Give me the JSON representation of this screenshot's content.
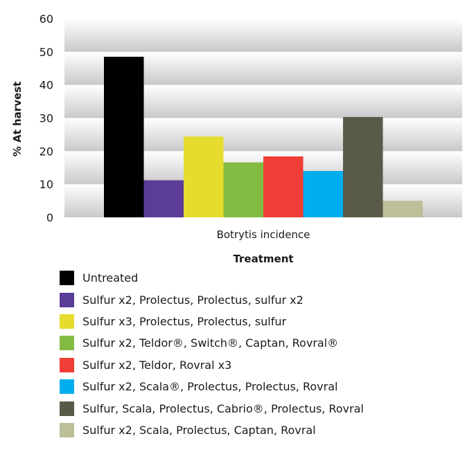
{
  "chart_data": {
    "type": "bar",
    "categories": [
      "Botrytis incidence"
    ],
    "xlabel": "Treatment",
    "ylabel": "% At harvest",
    "ylim": [
      0,
      60
    ],
    "yticks": [
      "0",
      "10",
      "20",
      "30",
      "40",
      "50",
      "60"
    ],
    "grid": true,
    "legend_position": "bottom",
    "series": [
      {
        "name": "Untreated",
        "values": [
          48.5
        ],
        "color": "#000000"
      },
      {
        "name": "Sulfur x2, Prolectus, Prolectus, sulfur x2",
        "values": [
          11.2
        ],
        "color": "#5b3c96"
      },
      {
        "name": "Sulfur x3, Prolectus, Prolectus, sulfur",
        "values": [
          24.4
        ],
        "color": "#e6dc2e"
      },
      {
        "name": "Sulfur x2, Teldor®, Switch®, Captan, Rovral®",
        "values": [
          16.6
        ],
        "color": "#83bb45"
      },
      {
        "name": "Sulfur x2, Teldor, Rovral x3",
        "values": [
          18.4
        ],
        "color": "#ee3e35"
      },
      {
        "name": "Sulfur x2, Scala®, Prolectus, Prolectus, Rovral",
        "values": [
          14.0
        ],
        "color": "#00aeef"
      },
      {
        "name": "Sulfur, Scala, Prolectus, Cabrio®, Prolectus, Rovral",
        "values": [
          30.3
        ],
        "color": "#5a5a48"
      },
      {
        "name": "Sulfur x2, Scala, Prolectus, Captan, Rovral",
        "values": [
          5.0
        ],
        "color": "#bcbf98"
      }
    ]
  }
}
